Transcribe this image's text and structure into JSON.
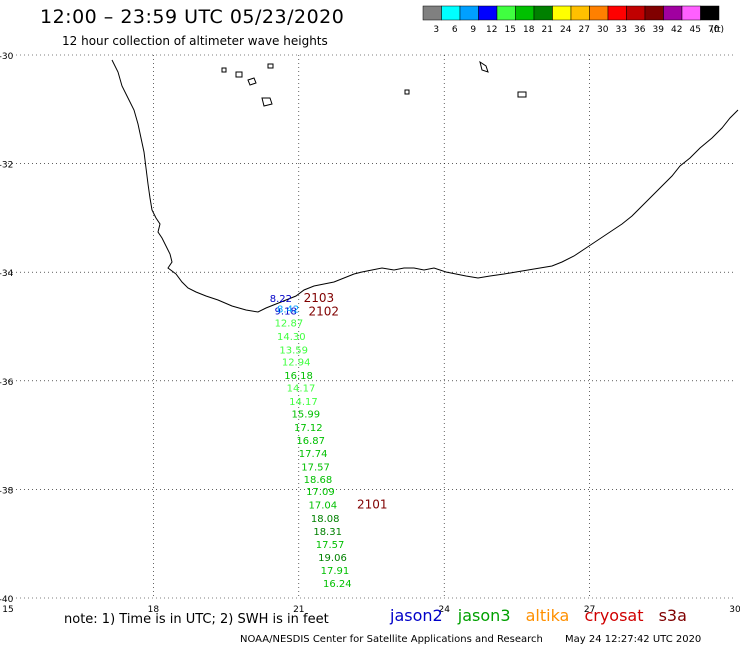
{
  "header": {
    "title": "12:00 – 23:59 UTC 05/23/2020",
    "subtitle": "12 hour collection of altimeter wave heights"
  },
  "colorbar": {
    "unit": "(ft)",
    "ticks": [
      "3",
      "6",
      "9",
      "12",
      "15",
      "18",
      "21",
      "24",
      "27",
      "30",
      "33",
      "36",
      "39",
      "42",
      "45",
      "70"
    ],
    "colors": [
      "#808080",
      "#00ffff",
      "#00a0ff",
      "#0000ff",
      "#40ff40",
      "#00c000",
      "#008000",
      "#ffff00",
      "#ffc000",
      "#ff8000",
      "#ff0000",
      "#c00000",
      "#800000",
      "#a000a0",
      "#ff60ff",
      "#000000"
    ]
  },
  "axes": {
    "lat_ticks": [
      "-30",
      "-32",
      "-34",
      "-36",
      "-38",
      "-40"
    ],
    "lon_ticks": [
      "15",
      "18",
      "21",
      "24",
      "27",
      "30"
    ]
  },
  "map": {
    "region": "South Africa south coast",
    "track_labels": [
      {
        "text": "2103",
        "lon": 21.1,
        "lat": -34.55,
        "color": "#800000"
      },
      {
        "text": "2102",
        "lon": 21.2,
        "lat": -34.8,
        "color": "#800000"
      },
      {
        "text": "2101",
        "lon": 22.2,
        "lat": -38.35,
        "color": "#800000"
      }
    ],
    "observations": [
      {
        "text": "8.22",
        "lon": 20.4,
        "lat": -34.55,
        "color": "#0000c8"
      },
      {
        "text": "9.18",
        "lon": 20.5,
        "lat": -34.78,
        "color": "#0000c8"
      },
      {
        "text": "8.42",
        "lon": 20.55,
        "lat": -34.74,
        "color": "#00a0ff"
      },
      {
        "text": "12.87",
        "lon": 20.5,
        "lat": -35.0,
        "color": "#40ff40"
      },
      {
        "text": "14.30",
        "lon": 20.55,
        "lat": -35.25,
        "color": "#40ff40"
      },
      {
        "text": "13.59",
        "lon": 20.6,
        "lat": -35.5,
        "color": "#40ff40"
      },
      {
        "text": "12.94",
        "lon": 20.65,
        "lat": -35.72,
        "color": "#40ff40"
      },
      {
        "text": "16.18",
        "lon": 20.7,
        "lat": -35.97,
        "color": "#00c000"
      },
      {
        "text": "14.17",
        "lon": 20.75,
        "lat": -36.2,
        "color": "#40ff40"
      },
      {
        "text": "14.17",
        "lon": 20.8,
        "lat": -36.45,
        "color": "#40ff40"
      },
      {
        "text": "15.99",
        "lon": 20.85,
        "lat": -36.68,
        "color": "#00c000"
      },
      {
        "text": "17.12",
        "lon": 20.9,
        "lat": -36.92,
        "color": "#00c000"
      },
      {
        "text": "16.87",
        "lon": 20.95,
        "lat": -37.16,
        "color": "#00c000"
      },
      {
        "text": "17.74",
        "lon": 21.0,
        "lat": -37.4,
        "color": "#00c000"
      },
      {
        "text": "17.57",
        "lon": 21.05,
        "lat": -37.65,
        "color": "#00c000"
      },
      {
        "text": "18.68",
        "lon": 21.1,
        "lat": -37.88,
        "color": "#00c000"
      },
      {
        "text": "17.09",
        "lon": 21.15,
        "lat": -38.1,
        "color": "#00c000"
      },
      {
        "text": "17.04",
        "lon": 21.2,
        "lat": -38.35,
        "color": "#00c000"
      },
      {
        "text": "18.08",
        "lon": 21.25,
        "lat": -38.6,
        "color": "#008000"
      },
      {
        "text": "18.31",
        "lon": 21.3,
        "lat": -38.84,
        "color": "#008000"
      },
      {
        "text": "17.57",
        "lon": 21.35,
        "lat": -39.08,
        "color": "#00c000"
      },
      {
        "text": "19.06",
        "lon": 21.4,
        "lat": -39.32,
        "color": "#008000"
      },
      {
        "text": "17.91",
        "lon": 21.45,
        "lat": -39.56,
        "color": "#00c000"
      },
      {
        "text": "16.24",
        "lon": 21.5,
        "lat": -39.8,
        "color": "#00c000"
      }
    ]
  },
  "footer": {
    "note": "note:  1) Time is in UTC;  2) SWH is in feet",
    "satellites": [
      {
        "name": "jason2",
        "color": "#0000c8"
      },
      {
        "name": "jason3",
        "color": "#00a000"
      },
      {
        "name": "altika",
        "color": "#ff9000"
      },
      {
        "name": "cryosat",
        "color": "#d00000"
      },
      {
        "name": "s3a",
        "color": "#800000"
      }
    ],
    "credit": "NOAA/NESDIS Center for Satellite Applications and Research",
    "timestamp": "May 24 12:27:42 UTC 2020"
  }
}
